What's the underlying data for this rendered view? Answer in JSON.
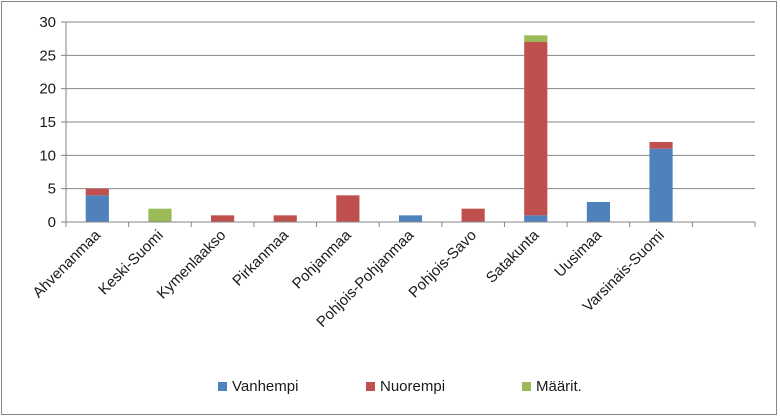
{
  "chart_data": {
    "type": "bar",
    "stacked": true,
    "title": "",
    "xlabel": "",
    "ylabel": "",
    "categories": [
      "Ahvenanmaa",
      "Keski-Suomi",
      "Kymenlaakso",
      "Pirkanmaa",
      "Pohjanmaa",
      "Pohjois-Pohjanmaa",
      "Pohjois-Savo",
      "Satakunta",
      "Uusimaa",
      "Varsinais-Suomi",
      ""
    ],
    "series": [
      {
        "name": "Vanhempi",
        "color": "#4f81bd",
        "values": [
          4,
          0,
          0,
          0,
          0,
          1,
          0,
          1,
          3,
          11,
          0
        ]
      },
      {
        "name": "Nuorempi",
        "color": "#c0504d",
        "values": [
          1,
          0,
          1,
          1,
          4,
          0,
          2,
          26,
          0,
          1,
          0
        ]
      },
      {
        "name": "Määrit.",
        "color": "#9bbb59",
        "values": [
          0,
          2,
          0,
          0,
          0,
          0,
          0,
          1,
          0,
          0,
          0
        ]
      }
    ],
    "ylim": [
      0,
      30
    ],
    "yticks": [
      0,
      5,
      10,
      15,
      20,
      25,
      30
    ],
    "grid": true,
    "legend": "bottom"
  }
}
